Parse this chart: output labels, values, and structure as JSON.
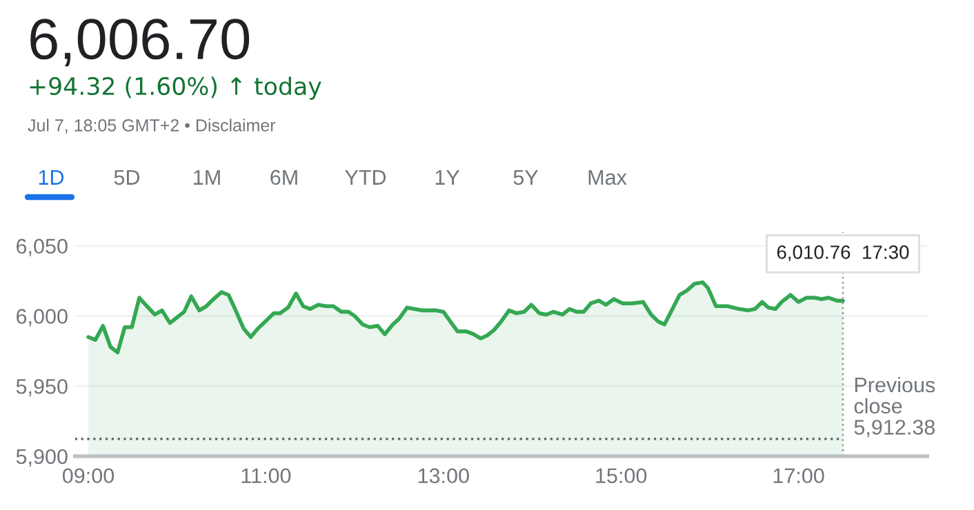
{
  "chart_data": {
    "type": "area",
    "title": "6,006.70",
    "subtitle": "+94.32 (1.60%) ↑ today",
    "annotations": [
      "Jul 7, 18:05 GMT+2 • Disclaimer",
      "1D",
      "5D",
      "1M",
      "6M",
      "YTD",
      "1Y",
      "5Y",
      "Max",
      {
        "text": "6,010.76  17:30",
        "x": 17.5,
        "y": 6010.76
      }
    ],
    "x": [
      9.0,
      9.08,
      9.165,
      9.25,
      9.33,
      9.41,
      9.49,
      9.575,
      9.66,
      9.75,
      9.83,
      9.92,
      10.0,
      10.08,
      10.16,
      10.25,
      10.33,
      10.41,
      10.5,
      10.58,
      10.66,
      10.75,
      10.83,
      10.91,
      11.01,
      11.09,
      11.16,
      11.25,
      11.34,
      11.42,
      11.5,
      11.59,
      11.68,
      11.76,
      11.85,
      11.93,
      12.0,
      12.09,
      12.17,
      12.26,
      12.34,
      12.43,
      12.5,
      12.59,
      12.67,
      12.76,
      12.91,
      13.0,
      13.09,
      13.16,
      13.26,
      13.34,
      13.42,
      13.49,
      13.57,
      13.65,
      13.74,
      13.82,
      13.91,
      13.99,
      14.08,
      14.16,
      14.24,
      14.34,
      14.42,
      14.5,
      14.58,
      14.66,
      14.75,
      14.83,
      14.92,
      15.02,
      15.12,
      15.25,
      15.34,
      15.42,
      15.49,
      15.58,
      15.66,
      15.74,
      15.83,
      15.92,
      15.98,
      16.07,
      16.2,
      16.33,
      16.43,
      16.51,
      16.59,
      16.66,
      16.74,
      16.81,
      16.91,
      17.0,
      17.09,
      17.18,
      17.26,
      17.34,
      17.43,
      17.5
    ],
    "series": [
      {
        "color": "#34a853",
        "values": [
          5985,
          5983,
          5993,
          5978,
          5974,
          5992,
          5992,
          6013,
          6007,
          6001,
          6004,
          5995,
          5999,
          6003,
          6014,
          6004,
          6007,
          6012,
          6017,
          6015,
          6004,
          5991,
          5985,
          5991,
          5997,
          6002,
          6002,
          6006,
          6016,
          6007,
          6005,
          6008,
          6007,
          6007,
          6003,
          6003,
          6000,
          5994,
          5992,
          5993,
          5987,
          5994,
          5998,
          6006,
          6005,
          6004,
          6004,
          6003,
          5995,
          5989,
          5989,
          5987,
          5984,
          5986,
          5990,
          5996,
          6004,
          6002,
          6003,
          6008,
          6002,
          6001,
          6003,
          6001,
          6005,
          6003,
          6003,
          6009,
          6011,
          6008,
          6012,
          6009,
          6009,
          6010,
          6001,
          5996,
          5994,
          6005,
          6015,
          6018,
          6023,
          6024,
          6020,
          6007,
          6007,
          6005,
          6004,
          6005,
          6010,
          6006,
          6005,
          6010,
          6015,
          6010,
          6013,
          6013,
          6012,
          6013,
          6011,
          6010.76
        ]
      }
    ],
    "xlim": [
      8.85,
      18.45
    ],
    "ylim": [
      5900,
      6060
    ],
    "xticks": [
      {
        "value": 9,
        "label": "09:00"
      },
      {
        "value": 11,
        "label": "11:00"
      },
      {
        "value": 13,
        "label": "13:00"
      },
      {
        "value": 15,
        "label": "15:00"
      },
      {
        "value": 17,
        "label": "17:00"
      }
    ],
    "yticks": [
      {
        "value": 5900,
        "label": "5,900"
      },
      {
        "value": 5950,
        "label": "5,950"
      },
      {
        "value": 6000,
        "label": "6,000"
      },
      {
        "value": 6050,
        "label": "6,050"
      }
    ],
    "ref_lines": [
      {
        "axis": "y",
        "value": 5912.38,
        "label": "Previous\nclose\n5,912.38",
        "line_style": "dotted",
        "color": "#5f6368"
      },
      {
        "axis": "x",
        "value": 17.5,
        "line_style": "dotted",
        "color": "#9aa0a6"
      }
    ],
    "grid": "y",
    "marker": "none",
    "line_style": "solid"
  }
}
